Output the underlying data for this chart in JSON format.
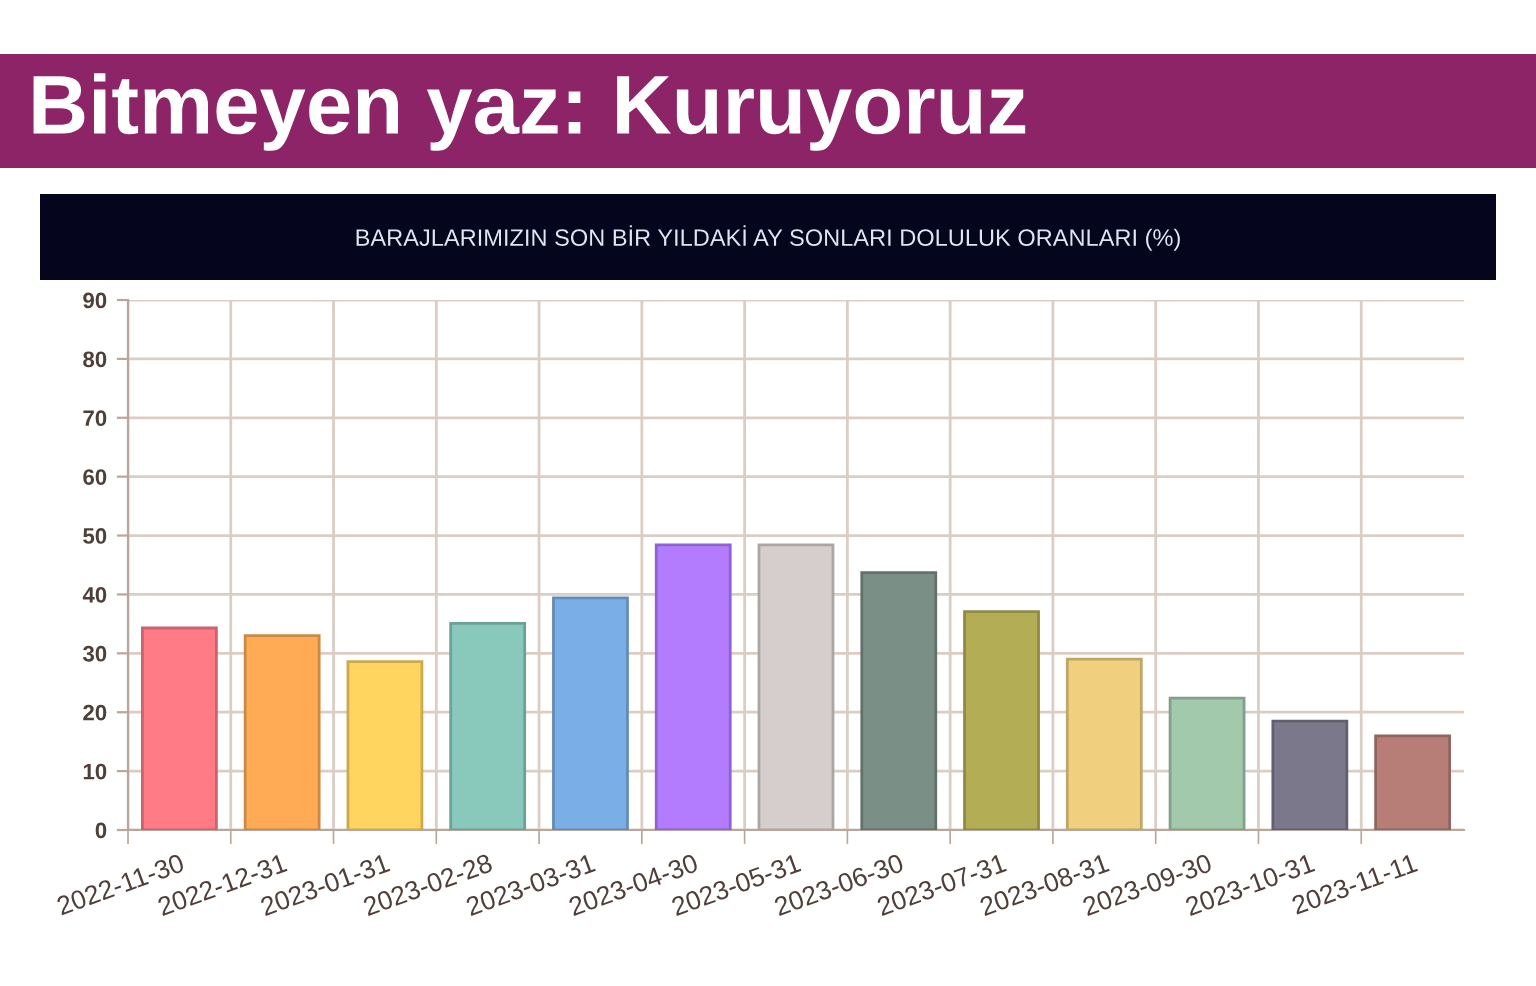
{
  "chart_data": {
    "type": "bar",
    "title": "Bitmeyen yaz: Kuruyoruz",
    "subtitle": "BARAJLARIMIZIN SON BİR YILDAKİ AY SONLARI DOLULUK ORANLARI (%)",
    "categories": [
      "2022-11-30",
      "2022-12-31",
      "2023-01-31",
      "2023-02-28",
      "2023-03-31",
      "2023-04-30",
      "2023-05-31",
      "2023-06-30",
      "2023-07-31",
      "2023-08-31",
      "2023-09-30",
      "2023-10-31",
      "2023-11-11"
    ],
    "values": [
      34.3,
      33.0,
      28.6,
      35.1,
      39.4,
      48.4,
      48.4,
      43.7,
      37.1,
      29.0,
      22.4,
      18.5,
      16.0
    ],
    "colors": [
      "#ff7b86",
      "#ffab55",
      "#ffd45f",
      "#88c9bc",
      "#7aaee6",
      "#b37cff",
      "#d6cecc",
      "#7a8f86",
      "#b3ad55",
      "#f0d07f",
      "#a3c9ad",
      "#7b788b",
      "#b77d77"
    ],
    "ylim": [
      0,
      90
    ],
    "yticks": [
      0,
      10,
      20,
      30,
      40,
      50,
      60,
      70,
      80,
      90
    ],
    "grid": true
  }
}
